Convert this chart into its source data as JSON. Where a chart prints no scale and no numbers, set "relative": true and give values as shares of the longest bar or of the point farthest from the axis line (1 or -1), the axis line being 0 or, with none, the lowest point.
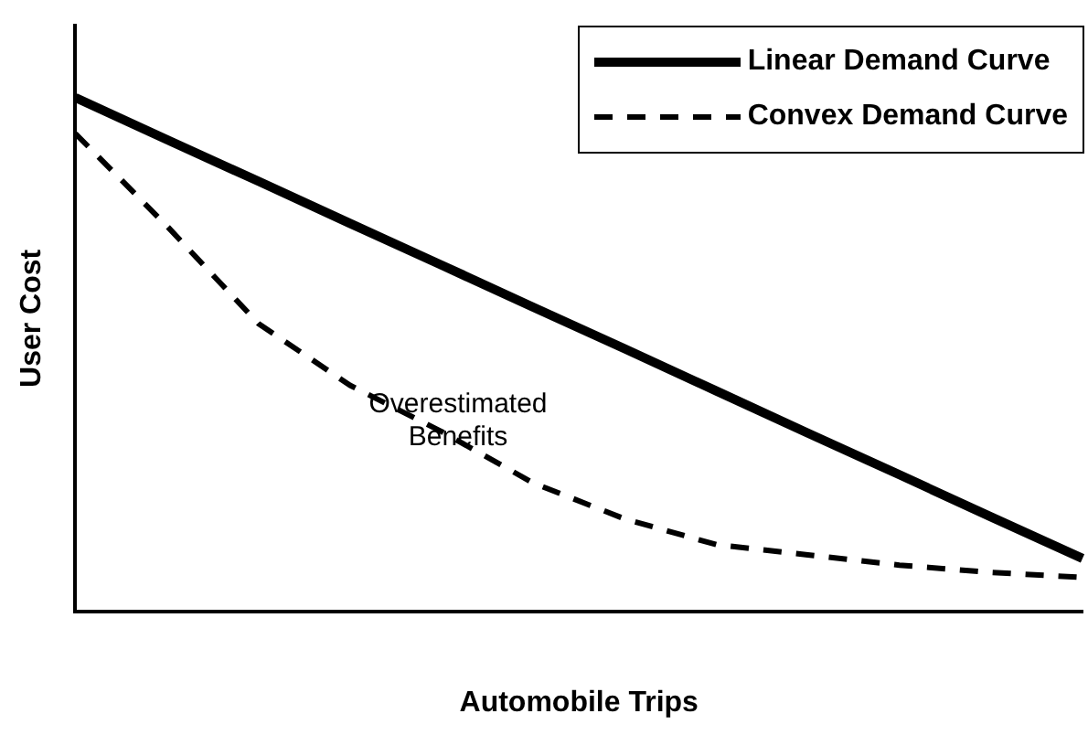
{
  "chart_data": {
    "type": "line",
    "xlabel": "Automobile Trips",
    "ylabel": "User Cost",
    "relative": true,
    "legend": "top right",
    "grid": false,
    "marker": "none",
    "categories": [
      null,
      null,
      null,
      null,
      null,
      null,
      null,
      null,
      null,
      null,
      null,
      null
    ],
    "series": [
      {
        "name": "Linear Demand Curve",
        "color": "#000000",
        "line_style": "solid",
        "values": [
          1,
          0.918,
          0.837,
          0.755,
          0.674,
          0.592,
          0.511,
          0.429,
          0.347,
          0.266,
          0.184,
          0.103
        ]
      },
      {
        "name": "Convex Demand Curve",
        "color": "#000000",
        "line_style": "dashed",
        "values": [
          0.93,
          0.75,
          0.56,
          0.44,
          0.35,
          0.25,
          0.18,
          0.13,
          0.11,
          0.09,
          0.076,
          0.066
        ]
      }
    ],
    "annotations": [
      "Overestimated Benefits"
    ]
  }
}
